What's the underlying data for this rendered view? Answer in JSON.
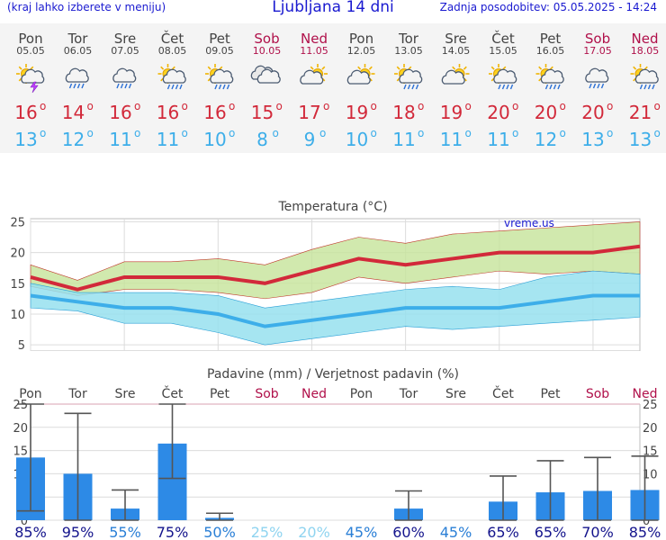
{
  "header": {
    "menu_hint": "(kraj lahko izberete v meniju)",
    "title": "Ljubljana 14 dni",
    "updated": "Zadnja posodobitev: 05.05.2025 - 14:24"
  },
  "days": [
    {
      "day": "Pon",
      "date": "05.05",
      "weekend": false,
      "icon": "sun-cloud-storm-icon",
      "tmax": "16",
      "tmin": "13"
    },
    {
      "day": "Tor",
      "date": "06.05",
      "weekend": false,
      "icon": "cloud-rain-icon",
      "tmax": "14",
      "tmin": "12"
    },
    {
      "day": "Sre",
      "date": "07.05",
      "weekend": false,
      "icon": "cloud-rain-icon",
      "tmax": "16",
      "tmin": "11"
    },
    {
      "day": "Čet",
      "date": "08.05",
      "weekend": false,
      "icon": "sun-cloud-rain-icon",
      "tmax": "16",
      "tmin": "11"
    },
    {
      "day": "Pet",
      "date": "09.05",
      "weekend": false,
      "icon": "sun-cloud-rain-icon",
      "tmax": "16",
      "tmin": "10"
    },
    {
      "day": "Sob",
      "date": "10.05",
      "weekend": true,
      "icon": "cloudy-icon",
      "tmax": "15",
      "tmin": "8"
    },
    {
      "day": "Ned",
      "date": "11.05",
      "weekend": true,
      "icon": "sun-cloud-icon",
      "tmax": "17",
      "tmin": "9"
    },
    {
      "day": "Pon",
      "date": "12.05",
      "weekend": false,
      "icon": "sun-cloud-icon",
      "tmax": "19",
      "tmin": "10"
    },
    {
      "day": "Tor",
      "date": "13.05",
      "weekend": false,
      "icon": "sun-cloud-rain-icon",
      "tmax": "18",
      "tmin": "11"
    },
    {
      "day": "Sre",
      "date": "14.05",
      "weekend": false,
      "icon": "sun-cloud-icon",
      "tmax": "19",
      "tmin": "11"
    },
    {
      "day": "Čet",
      "date": "15.05",
      "weekend": false,
      "icon": "sun-cloud-rain-icon",
      "tmax": "20",
      "tmin": "11"
    },
    {
      "day": "Pet",
      "date": "16.05",
      "weekend": false,
      "icon": "sun-cloud-rain-icon",
      "tmax": "20",
      "tmin": "12"
    },
    {
      "day": "Sob",
      "date": "17.05",
      "weekend": true,
      "icon": "cloud-rain-icon",
      "tmax": "20",
      "tmin": "13"
    },
    {
      "day": "Ned",
      "date": "18.05",
      "weekend": true,
      "icon": "sun-cloud-rain-icon",
      "tmax": "21",
      "tmin": "13"
    }
  ],
  "colors": {
    "tmax": "#d2293a",
    "tmin": "#3daee9",
    "weekend": "#b0104a",
    "header_blue": "#1a1ad0",
    "precip_bar": "#2d8ae6",
    "prob_high": "#14148c",
    "prob_low": "#8fd4f0",
    "green_band": "#c6e39a",
    "blue_band": "#96e0ee"
  },
  "chart_data": [
    {
      "type": "line",
      "title": "Temperatura (°C)",
      "watermark": "vreme.us",
      "ylim": [
        4,
        25.5
      ],
      "yticks": [
        5,
        10,
        15,
        20,
        25
      ],
      "x": [
        "05.05",
        "06.05",
        "07.05",
        "08.05",
        "09.05",
        "10.05",
        "11.05",
        "12.05",
        "13.05",
        "14.05",
        "15.05",
        "16.05",
        "17.05",
        "18.05"
      ],
      "series": [
        {
          "values": [
            16,
            14,
            16,
            16,
            16,
            15,
            17,
            19,
            18,
            19,
            20,
            20,
            20,
            21
          ]
        },
        {
          "values": [
            13,
            12,
            11,
            11,
            10,
            8,
            9,
            10,
            11,
            11,
            11,
            12,
            13,
            13
          ]
        }
      ],
      "max_band": {
        "upper": [
          18,
          15.5,
          18.5,
          18.5,
          19,
          18,
          20.5,
          22.5,
          21.5,
          23,
          23.5,
          24,
          24.5,
          25
        ],
        "lower": [
          14.5,
          13,
          14,
          14,
          13.5,
          12.5,
          13.5,
          16,
          15,
          16,
          17,
          16.5,
          17,
          16.5
        ]
      },
      "min_band": {
        "upper": [
          15,
          13.5,
          13.5,
          13.5,
          13,
          11,
          12,
          13,
          14,
          14.5,
          14,
          16,
          17,
          16.5
        ],
        "lower": [
          11,
          10.5,
          8.5,
          8.5,
          7,
          5,
          6,
          7,
          8,
          7.5,
          8,
          8.5,
          9,
          9.5
        ]
      },
      "grid": true
    },
    {
      "type": "bar",
      "title": "Padavine (mm) / Verjetnost padavin (%)",
      "ylim": [
        0,
        25
      ],
      "yticks": [
        0,
        5,
        10,
        15,
        20,
        25
      ],
      "categories": [
        "Pon",
        "Tor",
        "Sre",
        "Čet",
        "Pet",
        "Sob",
        "Ned",
        "Pon",
        "Tor",
        "Sre",
        "Čet",
        "Pet",
        "Sob",
        "Ned"
      ],
      "values": [
        13.5,
        10,
        2.5,
        16.5,
        0.5,
        0,
        0,
        0,
        2.5,
        0,
        4,
        6,
        6.3,
        6.5
      ],
      "range_low": [
        2,
        0,
        0,
        9,
        0,
        null,
        null,
        null,
        0,
        null,
        0,
        0,
        0,
        0
      ],
      "range_high": [
        25,
        23,
        6.5,
        25,
        1.5,
        null,
        null,
        null,
        6.3,
        null,
        9.5,
        12.8,
        13.5,
        13.8
      ],
      "probability": [
        "85%",
        "95%",
        "55%",
        "75%",
        "50%",
        "25%",
        "20%",
        "45%",
        "60%",
        "45%",
        "65%",
        "65%",
        "70%",
        "85%"
      ],
      "grid": true
    }
  ]
}
